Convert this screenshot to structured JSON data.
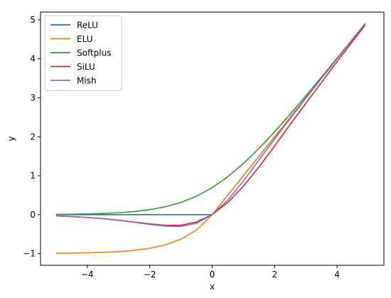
{
  "chart_data": {
    "type": "line",
    "xlabel": "x",
    "ylabel": "y",
    "xlim": [
      -5.5,
      5.5
    ],
    "ylim": [
      -1.3,
      5.2
    ],
    "xticks": [
      -4,
      -2,
      0,
      2,
      4
    ],
    "xtick_labels": [
      "−4",
      "−2",
      "0",
      "2",
      "4"
    ],
    "yticks": [
      -1,
      0,
      1,
      2,
      3,
      4,
      5
    ],
    "ytick_labels": [
      "−1",
      "0",
      "1",
      "2",
      "3",
      "4",
      "5"
    ],
    "grid": false,
    "legend_position": "top-left",
    "x": [
      -5.0,
      -4.5,
      -4.0,
      -3.5,
      -3.0,
      -2.5,
      -2.0,
      -1.5,
      -1.0,
      -0.5,
      0.0,
      0.5,
      1.0,
      1.5,
      2.0,
      2.5,
      3.0,
      3.5,
      4.0,
      4.5,
      4.9
    ],
    "series": [
      {
        "name": "ReLU",
        "color": "#1f77b4",
        "values": [
          0,
          0,
          0,
          0,
          0,
          0,
          0,
          0,
          0,
          0,
          0,
          0.5,
          1.0,
          1.5,
          2.0,
          2.5,
          3.0,
          3.5,
          4.0,
          4.5,
          4.9
        ]
      },
      {
        "name": "ELU",
        "color": "#ff7f0e",
        "values": [
          -0.993,
          -0.989,
          -0.982,
          -0.97,
          -0.95,
          -0.918,
          -0.865,
          -0.777,
          -0.632,
          -0.393,
          0,
          0.5,
          1.0,
          1.5,
          2.0,
          2.5,
          3.0,
          3.5,
          4.0,
          4.5,
          4.9
        ]
      },
      {
        "name": "Softplus",
        "color": "#2ca02c",
        "values": [
          0.007,
          0.011,
          0.018,
          0.03,
          0.049,
          0.079,
          0.127,
          0.201,
          0.313,
          0.474,
          0.693,
          0.974,
          1.313,
          1.701,
          2.127,
          2.579,
          3.049,
          3.53,
          4.018,
          4.511,
          4.907
        ]
      },
      {
        "name": "SiLU",
        "color": "#d62728",
        "values": [
          -0.033,
          -0.049,
          -0.072,
          -0.102,
          -0.142,
          -0.19,
          -0.238,
          -0.274,
          -0.269,
          -0.189,
          0,
          0.311,
          0.731,
          1.226,
          1.762,
          2.317,
          2.858,
          3.395,
          3.928,
          4.451,
          4.864
        ]
      },
      {
        "name": "Mish",
        "color": "#9467bd",
        "values": [
          -0.034,
          -0.05,
          -0.073,
          -0.105,
          -0.146,
          -0.196,
          -0.252,
          -0.293,
          -0.303,
          -0.222,
          0,
          0.375,
          0.865,
          1.404,
          1.944,
          2.468,
          2.987,
          3.497,
          4.0,
          4.501,
          4.9
        ]
      }
    ]
  }
}
